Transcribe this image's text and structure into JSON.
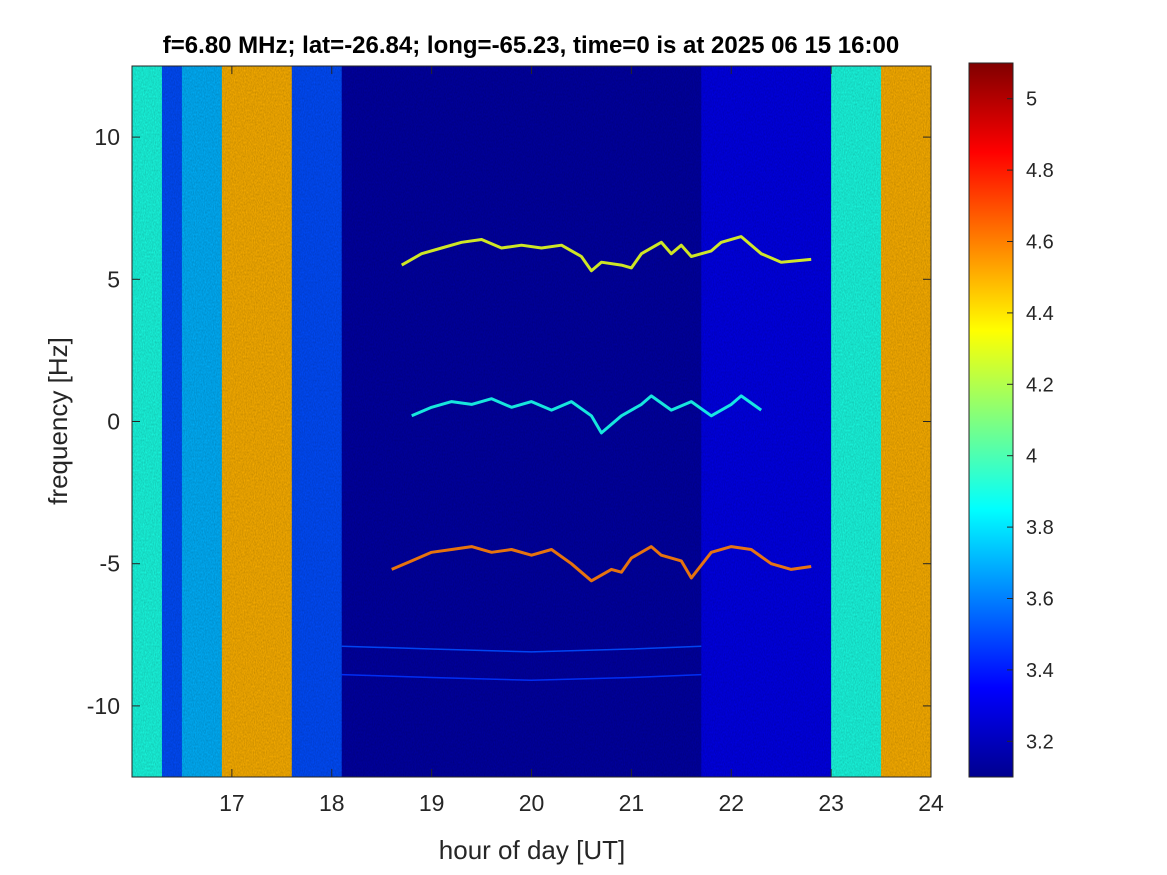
{
  "chart_data": {
    "type": "heatmap",
    "title": "f=6.80 MHz;  lat=-26.84; long=-65.23, time=0 is at 2025 06 15 16:00",
    "xlabel": "hour of day [UT]",
    "ylabel": "frequency [Hz]",
    "xlim": [
      16.0,
      24.0
    ],
    "ylim": [
      -12.5,
      12.5
    ],
    "xticks": [
      17,
      18,
      19,
      20,
      21,
      22,
      23,
      24
    ],
    "xtick_labels": [
      "17",
      "18",
      "19",
      "20",
      "21",
      "22",
      "23",
      "24"
    ],
    "yticks": [
      -10,
      -5,
      0,
      5,
      10
    ],
    "ytick_labels": [
      "-10",
      "-5",
      "0",
      "5",
      "10"
    ],
    "colorbar": {
      "range": [
        3.1,
        5.1
      ],
      "ticks": [
        3.2,
        3.4,
        3.6,
        3.8,
        4.0,
        4.2,
        4.4,
        4.6,
        4.8,
        5.0
      ],
      "tick_labels": [
        "3.2",
        "3.4",
        "3.6",
        "3.8",
        "4",
        "4.2",
        "4.4",
        "4.6",
        "4.8",
        "5"
      ],
      "colormap": "jet"
    },
    "background_by_hour": [
      {
        "x0": 16.0,
        "x1": 16.3,
        "level": 3.9
      },
      {
        "x0": 16.3,
        "x1": 16.5,
        "level": 3.5
      },
      {
        "x0": 16.5,
        "x1": 16.9,
        "level": 3.7
      },
      {
        "x0": 16.9,
        "x1": 17.6,
        "level": 4.5
      },
      {
        "x0": 17.6,
        "x1": 18.1,
        "level": 3.5
      },
      {
        "x0": 18.1,
        "x1": 21.7,
        "level": 3.15
      },
      {
        "x0": 21.7,
        "x1": 23.0,
        "level": 3.3
      },
      {
        "x0": 23.0,
        "x1": 23.5,
        "level": 3.9
      },
      {
        "x0": 23.5,
        "x1": 24.0,
        "level": 4.5
      }
    ],
    "series": [
      {
        "x": [
          18.7,
          18.9,
          19.1,
          19.3,
          19.5,
          19.7,
          19.9,
          20.1,
          20.3,
          20.5,
          20.6,
          20.7,
          20.9,
          21.0,
          21.1,
          21.3,
          21.4,
          21.5,
          21.6,
          21.8,
          21.9,
          22.1,
          22.3,
          22.5,
          22.8
        ],
        "y": [
          5.5,
          5.9,
          6.1,
          6.3,
          6.4,
          6.1,
          6.2,
          6.1,
          6.2,
          5.8,
          5.3,
          5.6,
          5.5,
          5.4,
          5.9,
          6.3,
          5.9,
          6.2,
          5.8,
          6.0,
          6.3,
          6.5,
          5.9,
          5.6,
          5.7
        ],
        "level": 4.3
      },
      {
        "x": [
          18.8,
          19.0,
          19.2,
          19.4,
          19.6,
          19.8,
          20.0,
          20.2,
          20.4,
          20.6,
          20.7,
          20.9,
          21.1,
          21.2,
          21.4,
          21.6,
          21.8,
          22.0,
          22.1,
          22.3
        ],
        "y": [
          0.2,
          0.5,
          0.7,
          0.6,
          0.8,
          0.5,
          0.7,
          0.4,
          0.7,
          0.2,
          -0.4,
          0.2,
          0.6,
          0.9,
          0.4,
          0.7,
          0.2,
          0.6,
          0.9,
          0.4
        ],
        "level": 3.9
      },
      {
        "x": [
          18.6,
          18.8,
          19.0,
          19.2,
          19.4,
          19.6,
          19.8,
          20.0,
          20.2,
          20.4,
          20.6,
          20.8,
          20.9,
          21.0,
          21.2,
          21.3,
          21.5,
          21.6,
          21.8,
          22.0,
          22.2,
          22.4,
          22.6,
          22.8
        ],
        "y": [
          -5.2,
          -4.9,
          -4.6,
          -4.5,
          -4.4,
          -4.6,
          -4.5,
          -4.7,
          -4.5,
          -5.0,
          -5.6,
          -5.2,
          -5.3,
          -4.8,
          -4.4,
          -4.7,
          -4.9,
          -5.5,
          -4.6,
          -4.4,
          -4.5,
          -5.0,
          -5.2,
          -5.1
        ],
        "level": 4.6
      },
      {
        "x": [
          18.1,
          19.0,
          20.0,
          21.0,
          21.7
        ],
        "y": [
          -7.9,
          -8.0,
          -8.1,
          -8.0,
          -7.9
        ],
        "level": 3.5
      },
      {
        "x": [
          18.1,
          19.0,
          20.0,
          21.0,
          21.7
        ],
        "y": [
          -8.9,
          -9.0,
          -9.1,
          -9.0,
          -8.9
        ],
        "level": 3.45
      }
    ]
  }
}
